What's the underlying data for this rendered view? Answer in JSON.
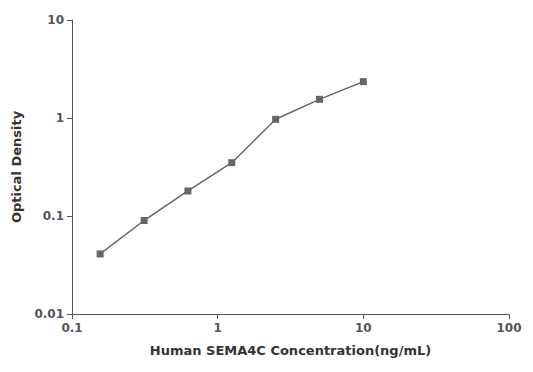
{
  "chart_data": {
    "type": "line",
    "x": [
      0.156,
      0.313,
      0.625,
      1.25,
      2.5,
      5.0,
      10.0
    ],
    "values": [
      0.041,
      0.09,
      0.18,
      0.35,
      0.97,
      1.55,
      2.35
    ],
    "xlabel": "Human SEMA4C Concentration(ng/mL)",
    "ylabel": "Optical Density",
    "xlim": [
      0.1,
      100
    ],
    "ylim": [
      0.01,
      10
    ],
    "xticks": [
      0.1,
      1,
      10,
      100
    ],
    "yticks": [
      0.01,
      0.1,
      1,
      10
    ],
    "log": true,
    "grid": false,
    "color": "#666666",
    "marker": "square"
  }
}
